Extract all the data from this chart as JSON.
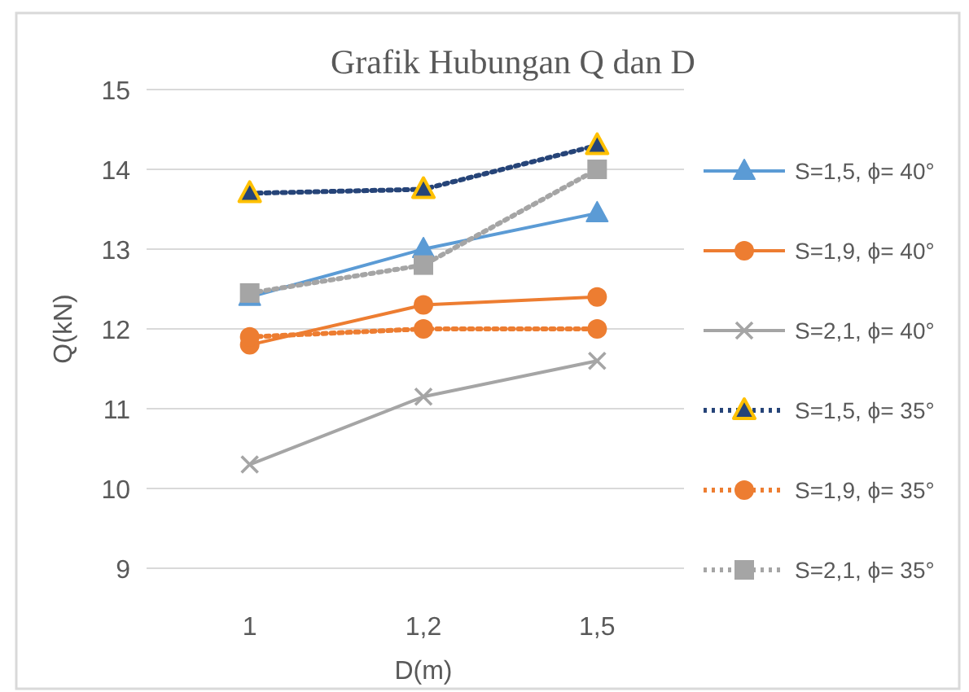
{
  "chart_data": {
    "type": "line",
    "title": "Grafik Hubungan Q dan D",
    "xlabel": "D(m)",
    "ylabel": "Q(kN)",
    "categories": [
      "1",
      "1,2",
      "1,5"
    ],
    "ylim": [
      9,
      15
    ],
    "yticks": [
      9,
      10,
      11,
      12,
      13,
      14,
      15
    ],
    "grid": "y",
    "legend": "right",
    "series": [
      {
        "name": "S=1,5, ϕ= 40°",
        "color": "#5b9bd5",
        "values": [
          12.4,
          13.0,
          13.45
        ],
        "marker": "triangle",
        "line_style": "solid"
      },
      {
        "name": "S=1,9, ϕ= 40°",
        "color": "#ed7d31",
        "values": [
          11.8,
          12.3,
          12.4
        ],
        "marker": "circle",
        "line_style": "solid"
      },
      {
        "name": "S=2,1, ϕ= 40°",
        "color": "#a5a5a5",
        "values": [
          10.3,
          11.15,
          11.6
        ],
        "marker": "cross",
        "line_style": "solid"
      },
      {
        "name": "S=1,5, ϕ= 35°",
        "color": "#264478",
        "values": [
          13.7,
          13.75,
          14.3
        ],
        "marker": "triangle",
        "line_style": "dotted"
      },
      {
        "name": "S=1,9, ϕ= 35°",
        "color": "#ed7d31",
        "values": [
          11.9,
          12.0,
          12.0
        ],
        "marker": "circle",
        "line_style": "dotted"
      },
      {
        "name": "S=2,1, ϕ= 35°",
        "color": "#a5a5a5",
        "values": [
          12.45,
          12.8,
          14.0
        ],
        "marker": "square",
        "line_style": "dotted"
      }
    ]
  }
}
